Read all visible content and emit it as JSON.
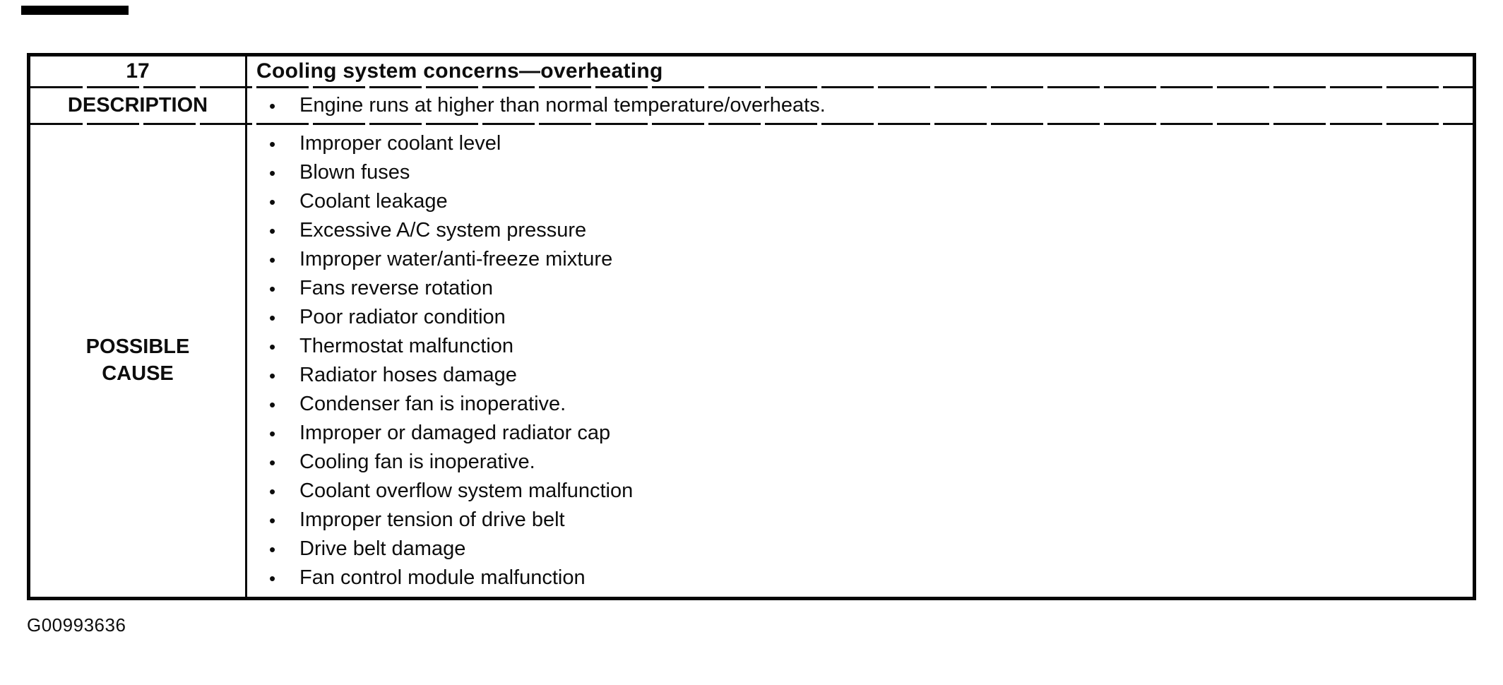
{
  "colors": {
    "ink": "#0d0d0d",
    "paper": "#ffffff"
  },
  "icons": {
    "bullet": "•"
  },
  "table": {
    "case_number": "17",
    "title": "Cooling system concerns—overheating",
    "description_label": "DESCRIPTION",
    "description_items": [
      "Engine runs at higher than normal temperature/overheats."
    ],
    "possible_cause_label_line1": "POSSIBLE",
    "possible_cause_label_line2": "CAUSE",
    "possible_cause_items": [
      "Improper coolant level",
      "Blown fuses",
      "Coolant leakage",
      "Excessive A/C system pressure",
      "Improper water/anti-freeze mixture",
      "Fans reverse rotation",
      "Poor radiator condition",
      "Thermostat malfunction",
      "Radiator hoses damage",
      "Condenser fan is inoperative.",
      "Improper or damaged radiator cap",
      "Cooling fan is inoperative.",
      "Coolant overflow system malfunction",
      "Improper tension of drive belt",
      "Drive belt damage",
      "Fan control module malfunction"
    ]
  },
  "figure_code": "G00993636"
}
